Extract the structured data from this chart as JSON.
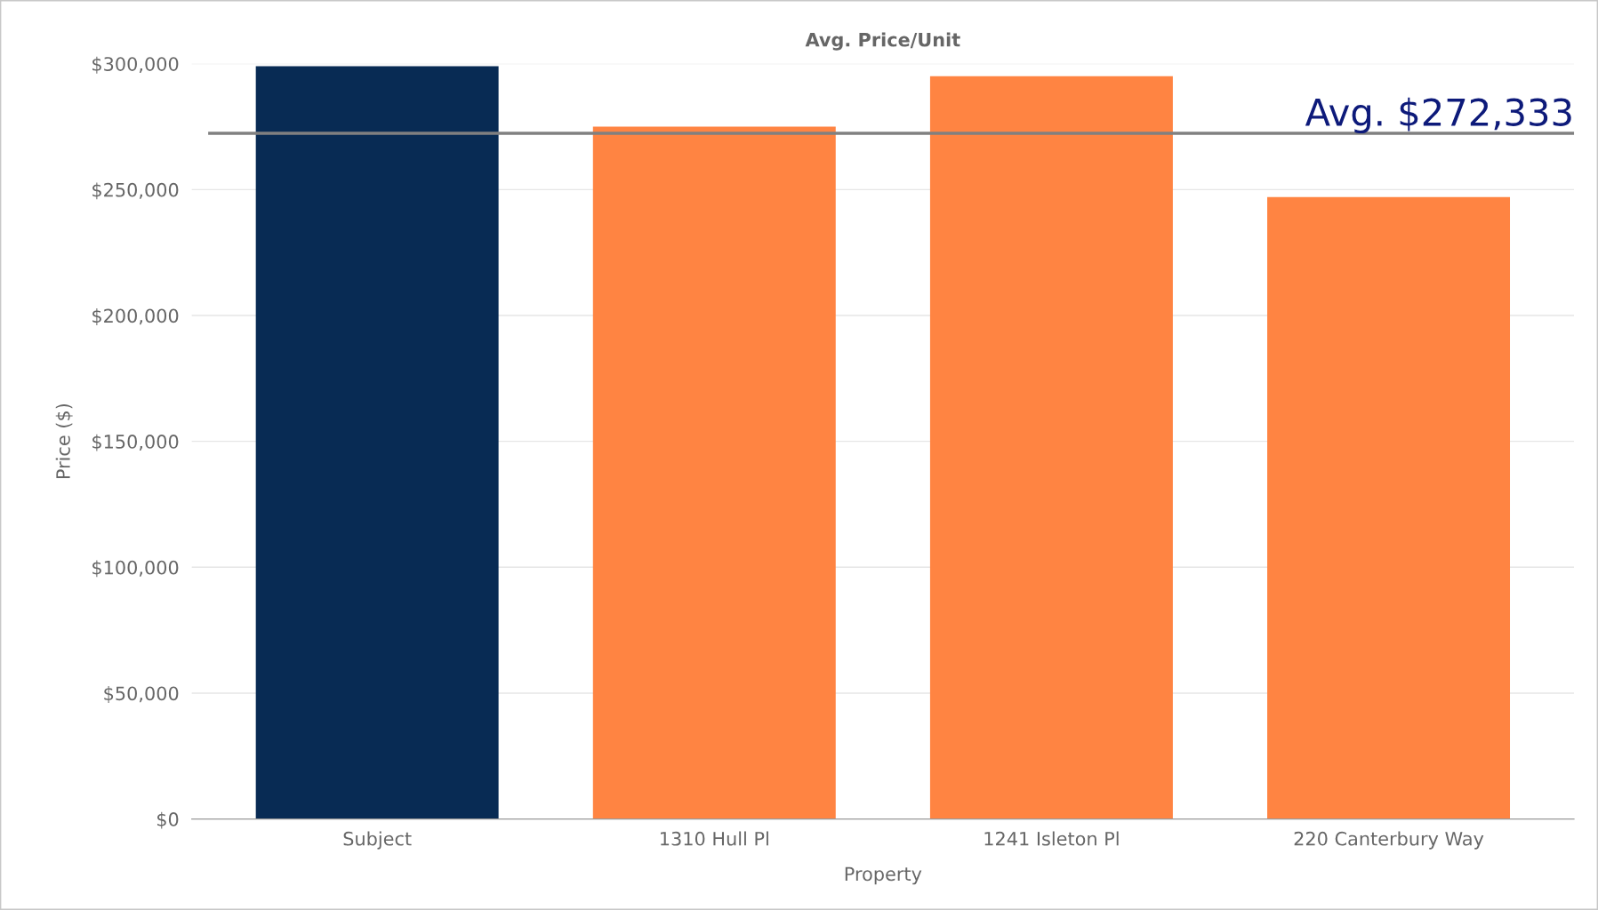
{
  "chart_data": {
    "type": "bar",
    "title": "Avg. Price/Unit",
    "xlabel": "Property",
    "ylabel": "Price ($)",
    "categories": [
      "Subject",
      "1310 Hull Pl",
      "1241 Isleton Pl",
      "220 Canterbury Way"
    ],
    "values": [
      299000,
      275000,
      295000,
      247000
    ],
    "colors": [
      "#082b54",
      "#ff8442",
      "#ff8442",
      "#ff8442"
    ],
    "ylim": [
      0,
      300000
    ],
    "yticks": [
      {
        "value": 0,
        "label": "$0"
      },
      {
        "value": 50000,
        "label": "$50,000"
      },
      {
        "value": 100000,
        "label": "$100,000"
      },
      {
        "value": 150000,
        "label": "$150,000"
      },
      {
        "value": 200000,
        "label": "$200,000"
      },
      {
        "value": 250000,
        "label": "$250,000"
      },
      {
        "value": 300000,
        "label": "$300,000"
      }
    ],
    "grid": "y",
    "ref_lines": [
      {
        "axis": "y",
        "value": 272333,
        "label": "Avg. $272,333",
        "color": "#808080"
      }
    ]
  }
}
